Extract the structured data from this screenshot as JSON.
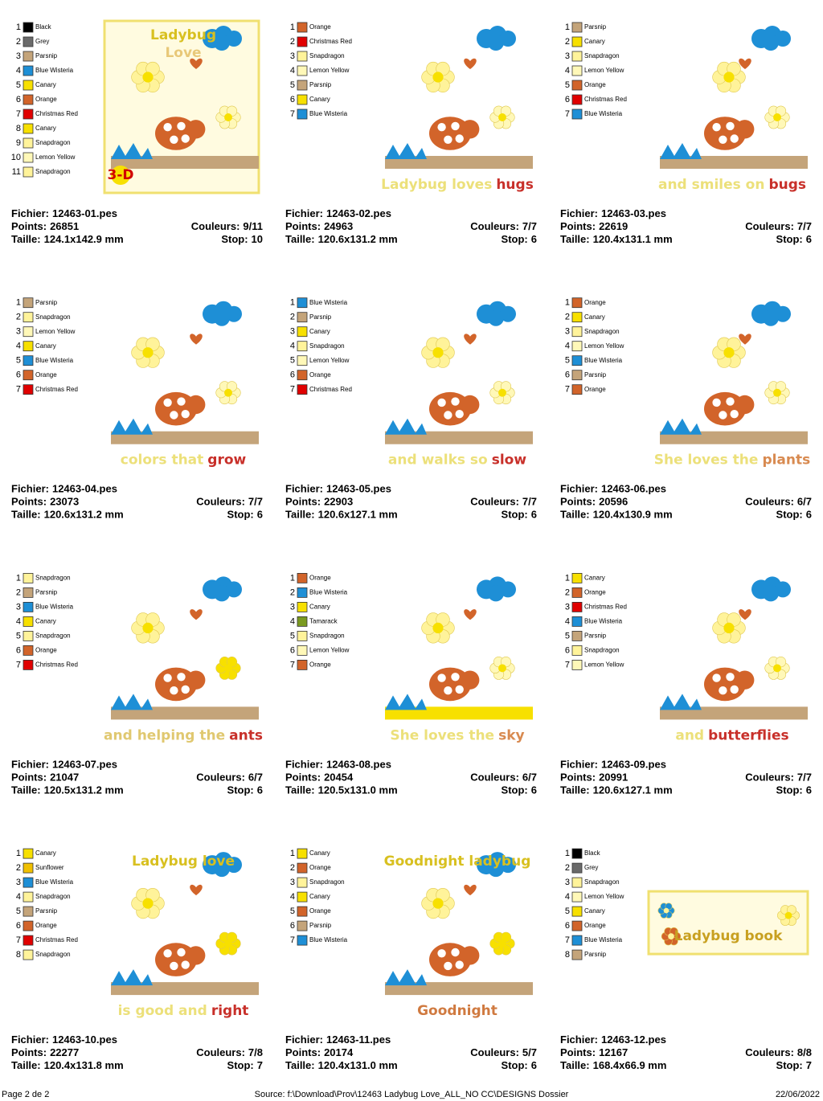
{
  "labels": {
    "file": "Fichier:",
    "points": "Points:",
    "size": "Taille:",
    "colors": "Couleurs:",
    "stop": "Stop:"
  },
  "designs": [
    {
      "file": "12463-01.pes",
      "points": 26851,
      "colors": "9/11",
      "size": "124.1x142.9 mm",
      "stop": 10,
      "framed": true,
      "thread": [
        {
          "n": 1,
          "name": "Black",
          "color": "#000000"
        },
        {
          "n": 2,
          "name": "Grey",
          "color": "#6a6a6a"
        },
        {
          "n": 3,
          "name": "Parsnip",
          "color": "#c4a47a"
        },
        {
          "n": 4,
          "name": "Blue Wisteria",
          "color": "#1e8fd6"
        },
        {
          "n": 5,
          "name": "Canary",
          "color": "#f7e000"
        },
        {
          "n": 6,
          "name": "Orange",
          "color": "#d2642a"
        },
        {
          "n": 7,
          "name": "Christmas Red",
          "color": "#e00000"
        },
        {
          "n": 8,
          "name": "Canary",
          "color": "#f7e000"
        },
        {
          "n": 9,
          "name": "Snapdragon",
          "color": "#fff39a"
        },
        {
          "n": 10,
          "name": "Lemon Yellow",
          "color": "#fff8b8"
        },
        {
          "n": 11,
          "name": "Snapdragon",
          "color": "#fff39a"
        }
      ],
      "caption": [
        {
          "pos": "top",
          "parts": [
            {
              "text": "Ladybug",
              "color": "#d8c020"
            }
          ]
        },
        {
          "pos": "top2",
          "parts": [
            {
              "text": "Love",
              "color": "#e8c878"
            }
          ]
        },
        {
          "pos": "badge",
          "parts": [
            {
              "text": "3-D",
              "color": "#d00000"
            }
          ]
        }
      ]
    },
    {
      "file": "12463-02.pes",
      "points": 24963,
      "colors": "7/7",
      "size": "120.6x131.2 mm",
      "stop": 6,
      "thread": [
        {
          "n": 1,
          "name": "Orange",
          "color": "#d2642a"
        },
        {
          "n": 2,
          "name": "Christmas Red",
          "color": "#e00000"
        },
        {
          "n": 3,
          "name": "Snapdragon",
          "color": "#fff39a"
        },
        {
          "n": 4,
          "name": "Lemon Yellow",
          "color": "#fff8b8"
        },
        {
          "n": 5,
          "name": "Parsnip",
          "color": "#c4a47a"
        },
        {
          "n": 6,
          "name": "Canary",
          "color": "#f7e000"
        },
        {
          "n": 7,
          "name": "Blue Wisteria",
          "color": "#1e8fd6"
        }
      ],
      "caption": [
        {
          "pos": "bottom",
          "parts": [
            {
              "text": "Ladybug loves",
              "color": "#ece07a"
            },
            {
              "text": "hugs",
              "color": "#c8302a"
            }
          ]
        }
      ]
    },
    {
      "file": "12463-03.pes",
      "points": 22619,
      "colors": "7/7",
      "size": "120.4x131.1 mm",
      "stop": 6,
      "thread": [
        {
          "n": 1,
          "name": "Parsnip",
          "color": "#c4a47a"
        },
        {
          "n": 2,
          "name": "Canary",
          "color": "#f7e000"
        },
        {
          "n": 3,
          "name": "Snapdragon",
          "color": "#fff39a"
        },
        {
          "n": 4,
          "name": "Lemon Yellow",
          "color": "#fff8b8"
        },
        {
          "n": 5,
          "name": "Orange",
          "color": "#d2642a"
        },
        {
          "n": 6,
          "name": "Christmas Red",
          "color": "#e00000"
        },
        {
          "n": 7,
          "name": "Blue Wisteria",
          "color": "#1e8fd6"
        }
      ],
      "caption": [
        {
          "pos": "bottom",
          "parts": [
            {
              "text": "and smiles on",
              "color": "#ece07a"
            },
            {
              "text": "bugs",
              "color": "#c8302a"
            }
          ]
        }
      ]
    },
    {
      "file": "12463-04.pes",
      "points": 23073,
      "colors": "7/7",
      "size": "120.6x131.2 mm",
      "stop": 6,
      "thread": [
        {
          "n": 1,
          "name": "Parsnip",
          "color": "#c4a47a"
        },
        {
          "n": 2,
          "name": "Snapdragon",
          "color": "#fff39a"
        },
        {
          "n": 3,
          "name": "Lemon Yellow",
          "color": "#fff8b8"
        },
        {
          "n": 4,
          "name": "Canary",
          "color": "#f7e000"
        },
        {
          "n": 5,
          "name": "Blue Wisteria",
          "color": "#1e8fd6"
        },
        {
          "n": 6,
          "name": "Orange",
          "color": "#d2642a"
        },
        {
          "n": 7,
          "name": "Christmas Red",
          "color": "#e00000"
        }
      ],
      "caption": [
        {
          "pos": "bottom",
          "parts": [
            {
              "text": "colors that",
              "color": "#ece07a"
            },
            {
              "text": "grow",
              "color": "#c8302a"
            }
          ]
        }
      ]
    },
    {
      "file": "12463-05.pes",
      "points": 22903,
      "colors": "7/7",
      "size": "120.6x127.1 mm",
      "stop": 6,
      "thread": [
        {
          "n": 1,
          "name": "Blue Wisteria",
          "color": "#1e8fd6"
        },
        {
          "n": 2,
          "name": "Parsnip",
          "color": "#c4a47a"
        },
        {
          "n": 3,
          "name": "Canary",
          "color": "#f7e000"
        },
        {
          "n": 4,
          "name": "Snapdragon",
          "color": "#fff39a"
        },
        {
          "n": 5,
          "name": "Lemon Yellow",
          "color": "#fff8b8"
        },
        {
          "n": 6,
          "name": "Orange",
          "color": "#d2642a"
        },
        {
          "n": 7,
          "name": "Christmas Red",
          "color": "#e00000"
        }
      ],
      "caption": [
        {
          "pos": "bottom",
          "parts": [
            {
              "text": "and walks so",
              "color": "#ece07a"
            },
            {
              "text": "slow",
              "color": "#c8302a"
            }
          ]
        }
      ]
    },
    {
      "file": "12463-06.pes",
      "points": 20596,
      "colors": "6/7",
      "size": "120.4x130.9 mm",
      "stop": 6,
      "thread": [
        {
          "n": 1,
          "name": "Orange",
          "color": "#d2642a"
        },
        {
          "n": 2,
          "name": "Canary",
          "color": "#f7e000"
        },
        {
          "n": 3,
          "name": "Snapdragon",
          "color": "#fff39a"
        },
        {
          "n": 4,
          "name": "Lemon Yellow",
          "color": "#fff8b8"
        },
        {
          "n": 5,
          "name": "Blue Wisteria",
          "color": "#1e8fd6"
        },
        {
          "n": 6,
          "name": "Parsnip",
          "color": "#c4a47a"
        },
        {
          "n": 7,
          "name": "Orange",
          "color": "#d2642a"
        }
      ],
      "caption": [
        {
          "pos": "bottom",
          "parts": [
            {
              "text": "She loves the",
              "color": "#ece07a"
            },
            {
              "text": "plants",
              "color": "#d88a50"
            }
          ]
        }
      ]
    },
    {
      "file": "12463-07.pes",
      "points": 21047,
      "colors": "6/7",
      "size": "120.5x131.2 mm",
      "stop": 6,
      "thread": [
        {
          "n": 1,
          "name": "Snapdragon",
          "color": "#fff39a"
        },
        {
          "n": 2,
          "name": "Parsnip",
          "color": "#c4a47a"
        },
        {
          "n": 3,
          "name": "Blue Wisteria",
          "color": "#1e8fd6"
        },
        {
          "n": 4,
          "name": "Canary",
          "color": "#f7e000"
        },
        {
          "n": 5,
          "name": "Snapdragon",
          "color": "#fff39a"
        },
        {
          "n": 6,
          "name": "Orange",
          "color": "#d2642a"
        },
        {
          "n": 7,
          "name": "Christmas Red",
          "color": "#e00000"
        }
      ],
      "caption": [
        {
          "pos": "bottom",
          "parts": [
            {
              "text": "and helping the",
              "color": "#e0c870"
            },
            {
              "text": "ants",
              "color": "#c8302a"
            }
          ]
        }
      ]
    },
    {
      "file": "12463-08.pes",
      "points": 20454,
      "colors": "6/7",
      "size": "120.5x131.0 mm",
      "stop": 6,
      "thread": [
        {
          "n": 1,
          "name": "Orange",
          "color": "#d2642a"
        },
        {
          "n": 2,
          "name": "Blue Wisteria",
          "color": "#1e8fd6"
        },
        {
          "n": 3,
          "name": "Canary",
          "color": "#f7e000"
        },
        {
          "n": 4,
          "name": "Tamarack",
          "color": "#7a9a20"
        },
        {
          "n": 5,
          "name": "Snapdragon",
          "color": "#fff39a"
        },
        {
          "n": 6,
          "name": "Lemon Yellow",
          "color": "#fff8b8"
        },
        {
          "n": 7,
          "name": "Orange",
          "color": "#d2642a"
        }
      ],
      "caption": [
        {
          "pos": "bottom",
          "parts": [
            {
              "text": "She loves the",
              "color": "#ece07a"
            },
            {
              "text": "sky",
              "color": "#d88a50"
            }
          ]
        }
      ]
    },
    {
      "file": "12463-09.pes",
      "points": 20991,
      "colors": "7/7",
      "size": "120.6x127.1 mm",
      "stop": 6,
      "thread": [
        {
          "n": 1,
          "name": "Canary",
          "color": "#f7e000"
        },
        {
          "n": 2,
          "name": "Orange",
          "color": "#d2642a"
        },
        {
          "n": 3,
          "name": "Christmas Red",
          "color": "#e00000"
        },
        {
          "n": 4,
          "name": "Blue Wisteria",
          "color": "#1e8fd6"
        },
        {
          "n": 5,
          "name": "Parsnip",
          "color": "#c4a47a"
        },
        {
          "n": 6,
          "name": "Snapdragon",
          "color": "#fff39a"
        },
        {
          "n": 7,
          "name": "Lemon Yellow",
          "color": "#fff8b8"
        }
      ],
      "caption": [
        {
          "pos": "bottom",
          "parts": [
            {
              "text": "and",
              "color": "#ece07a"
            },
            {
              "text": "butterflies",
              "color": "#c8302a"
            }
          ]
        }
      ]
    },
    {
      "file": "12463-10.pes",
      "points": 22277,
      "colors": "7/8",
      "size": "120.4x131.8 mm",
      "stop": 7,
      "thread": [
        {
          "n": 1,
          "name": "Canary",
          "color": "#f7e000"
        },
        {
          "n": 2,
          "name": "Sunflower",
          "color": "#f0c000"
        },
        {
          "n": 3,
          "name": "Blue Wisteria",
          "color": "#1e8fd6"
        },
        {
          "n": 4,
          "name": "Snapdragon",
          "color": "#fff39a"
        },
        {
          "n": 5,
          "name": "Parsnip",
          "color": "#c4a47a"
        },
        {
          "n": 6,
          "name": "Orange",
          "color": "#d2642a"
        },
        {
          "n": 7,
          "name": "Christmas Red",
          "color": "#e00000"
        },
        {
          "n": 8,
          "name": "Snapdragon",
          "color": "#fff39a"
        }
      ],
      "caption": [
        {
          "pos": "top",
          "parts": [
            {
              "text": "Ladybug love",
              "color": "#d8c020"
            }
          ]
        },
        {
          "pos": "bottom",
          "parts": [
            {
              "text": "is good and",
              "color": "#ece07a"
            },
            {
              "text": "right",
              "color": "#c8302a"
            }
          ]
        }
      ]
    },
    {
      "file": "12463-11.pes",
      "points": 20174,
      "colors": "5/7",
      "size": "120.4x131.0 mm",
      "stop": 6,
      "thread": [
        {
          "n": 1,
          "name": "Canary",
          "color": "#f7e000"
        },
        {
          "n": 2,
          "name": "Orange",
          "color": "#d2642a"
        },
        {
          "n": 3,
          "name": "Snapdragon",
          "color": "#fff39a"
        },
        {
          "n": 4,
          "name": "Canary",
          "color": "#f7e000"
        },
        {
          "n": 5,
          "name": "Orange",
          "color": "#d2642a"
        },
        {
          "n": 6,
          "name": "Parsnip",
          "color": "#c4a47a"
        },
        {
          "n": 7,
          "name": "Blue Wisteria",
          "color": "#1e8fd6"
        }
      ],
      "caption": [
        {
          "pos": "top",
          "parts": [
            {
              "text": "Goodnight ladybug",
              "color": "#d8c020"
            }
          ]
        },
        {
          "pos": "bottom",
          "parts": [
            {
              "text": "Goodnight",
              "color": "#d07a40"
            }
          ]
        }
      ]
    },
    {
      "file": "12463-12.pes",
      "points": 12167,
      "colors": "8/8",
      "size": "168.4x66.9 mm",
      "stop": 7,
      "framed": true,
      "wide": true,
      "thread": [
        {
          "n": 1,
          "name": "Black",
          "color": "#000000"
        },
        {
          "n": 2,
          "name": "Grey",
          "color": "#6a6a6a"
        },
        {
          "n": 3,
          "name": "Snapdragon",
          "color": "#fff39a"
        },
        {
          "n": 4,
          "name": "Lemon Yellow",
          "color": "#fff8b8"
        },
        {
          "n": 5,
          "name": "Canary",
          "color": "#f7e000"
        },
        {
          "n": 6,
          "name": "Orange",
          "color": "#d2642a"
        },
        {
          "n": 7,
          "name": "Blue Wisteria",
          "color": "#1e8fd6"
        },
        {
          "n": 8,
          "name": "Parsnip",
          "color": "#c4a47a"
        }
      ],
      "caption": [
        {
          "pos": "center",
          "parts": [
            {
              "text": "Ladybug book",
              "color": "#c8a020"
            }
          ]
        }
      ]
    }
  ],
  "footer": {
    "page": "Page 2 de 2",
    "source": "Source: f:\\Download\\Prov\\12463 Ladybug Love_ALL_NO CC\\DESIGNS Dossier",
    "date": "22/06/2022"
  }
}
